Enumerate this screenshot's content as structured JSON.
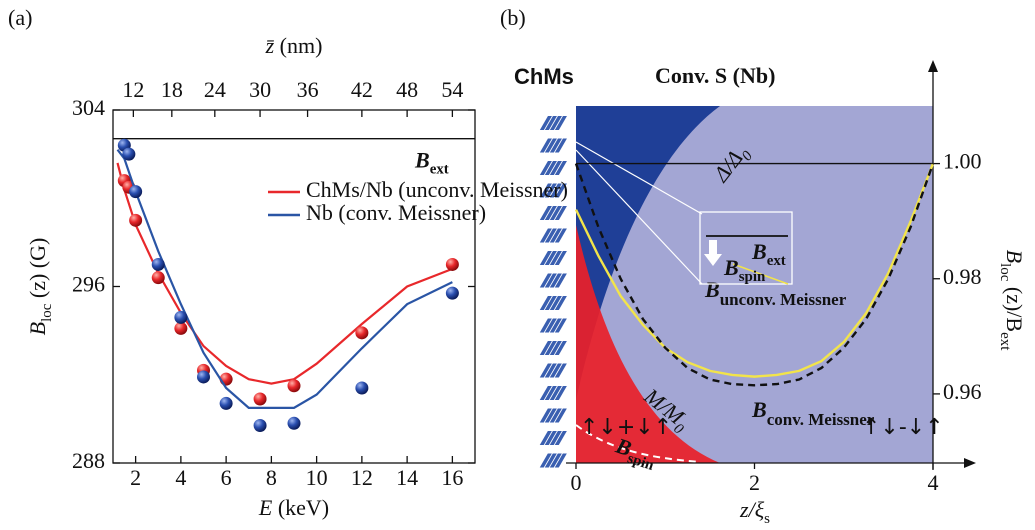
{
  "chart_data": [
    {
      "type": "scatter-line",
      "panel": "(a)",
      "xlabel": {
        "main": "E",
        "rest": " (keV)"
      },
      "ylabel": {
        "main": "B",
        "sub": "loc",
        "rest": " (z) (G)"
      },
      "x2label": {
        "main": "z̄",
        "rest": " (nm)"
      },
      "xlim": [
        1,
        17
      ],
      "xticks": [
        2,
        4,
        6,
        8,
        10,
        12,
        14,
        16
      ],
      "x2ticks": [
        {
          "value": 1.9,
          "label": "12"
        },
        {
          "value": 3.6,
          "label": "18"
        },
        {
          "value": 5.5,
          "label": "24"
        },
        {
          "value": 7.5,
          "label": "30"
        },
        {
          "value": 9.6,
          "label": "36"
        },
        {
          "value": 12,
          "label": "42"
        },
        {
          "value": 14,
          "label": "48"
        },
        {
          "value": 16,
          "label": "54"
        }
      ],
      "ylim": [
        288,
        304
      ],
      "yticks": [
        288,
        296,
        304
      ],
      "reference": {
        "label": {
          "main": "B",
          "sub": "ext"
        },
        "value": 302.7
      },
      "series": [
        {
          "name": "ChMs/Nb (unconv. Meissner)",
          "color": "#e8282b",
          "x": [
            1.5,
            1.7,
            2,
            3,
            4,
            5,
            6,
            7.5,
            9,
            12,
            16
          ],
          "values": [
            300.8,
            300.5,
            299,
            296.4,
            294.1,
            292.2,
            291.8,
            290.9,
            291.5,
            293.9,
            297
          ],
          "line_x": [
            1.2,
            1.5,
            2,
            3,
            4,
            5,
            6,
            7,
            8,
            9,
            10,
            12,
            14,
            16
          ],
          "line_values": [
            301.6,
            300.4,
            298.8,
            296.6,
            294.8,
            293.3,
            292.4,
            291.8,
            291.6,
            291.8,
            292.5,
            294.3,
            296,
            296.8
          ]
        },
        {
          "name": "Nb (conv. Meissner)",
          "color": "#2a55a5",
          "x": [
            1.5,
            1.7,
            2,
            3,
            4,
            5,
            6,
            7.5,
            9,
            12,
            16
          ],
          "values": [
            302.4,
            302,
            300.3,
            297,
            294.6,
            291.9,
            290.7,
            289.7,
            289.8,
            291.4,
            295.7
          ],
          "line_x": [
            1.2,
            1.5,
            2,
            3,
            4,
            5,
            6,
            7,
            8,
            9,
            10,
            12,
            14,
            16
          ],
          "line_values": [
            302.2,
            301.8,
            300.3,
            297.6,
            295.2,
            293,
            291.4,
            290.5,
            290.5,
            290.5,
            291.1,
            293.2,
            295.2,
            296.2
          ]
        }
      ]
    },
    {
      "type": "line",
      "panel": "(b)",
      "xlabel": {
        "main": "z/ξ",
        "sub": "s"
      },
      "ylabel": {
        "main": "B",
        "sub": "loc",
        "rest": " (z)/B",
        "sub2": "ext"
      },
      "xlim": [
        0,
        4
      ],
      "xticks": [
        0,
        2,
        4
      ],
      "ylim": [
        0.948,
        1.01
      ],
      "yticks": [
        0.96,
        0.98,
        {
          "value": 1,
          "label": "1.00"
        }
      ],
      "reference": {
        "value": 1
      },
      "region_left": "ChMs",
      "region_right": "Conv. S (Nb)",
      "delta_label": {
        "main": "Δ/Δ",
        "sub": "0"
      },
      "m_label": {
        "main": "M/M",
        "sub": "0"
      },
      "spin_label": {
        "main": "B",
        "sub": "spin"
      },
      "left_state": "↑↓+↓↑",
      "right_state": "↑↓-↓↑",
      "inset": {
        "ext": {
          "main": "B",
          "sub": "ext"
        },
        "spin": {
          "main": "B",
          "sub": "spin"
        }
      },
      "x": [
        0,
        0.25,
        0.5,
        0.75,
        1,
        1.25,
        1.5,
        1.75,
        2,
        2.25,
        2.5,
        2.75,
        3,
        3.25,
        3.5,
        3.75,
        4
      ],
      "series": [
        {
          "name": "B",
          "subscript": "unconv. Meissner",
          "color": "#f2e44a",
          "dashed": false,
          "values": [
            0.992,
            0.984,
            0.977,
            0.972,
            0.968,
            0.9655,
            0.964,
            0.9633,
            0.963,
            0.9633,
            0.964,
            0.9657,
            0.969,
            0.974,
            0.981,
            0.99,
            1
          ]
        },
        {
          "name": "B",
          "subscript": "conv. Meissner",
          "color": "#111111",
          "dashed": true,
          "values": [
            1,
            0.989,
            0.98,
            0.973,
            0.968,
            0.9645,
            0.9625,
            0.9617,
            0.9615,
            0.9617,
            0.9625,
            0.9645,
            0.968,
            0.973,
            0.98,
            0.989,
            1
          ]
        }
      ]
    }
  ]
}
